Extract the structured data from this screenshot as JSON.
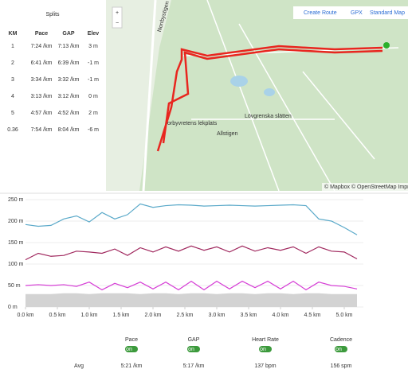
{
  "splits": {
    "title": "Splits",
    "columns": [
      "KM",
      "Pace",
      "GAP",
      "Elev"
    ],
    "rows": [
      [
        "1",
        "7:24 /km",
        "7:13 /km",
        "3 m"
      ],
      [
        "2",
        "6:41 /km",
        "6:39 /km",
        "-1 m"
      ],
      [
        "3",
        "3:34 /km",
        "3:32 /km",
        "-1 m"
      ],
      [
        "4",
        "3:13 /km",
        "3:12 /km",
        "0 m"
      ],
      [
        "5",
        "4:57 /km",
        "4:52 /km",
        "2 m"
      ],
      [
        "0.36",
        "7:54 /km",
        "8:04 /km",
        "-6 m"
      ]
    ]
  },
  "map": {
    "zoom_in": "+",
    "zoom_out": "−",
    "create_route": "Create Route",
    "gpx": "GPX",
    "map_style": "Standard Map",
    "labels": [
      "Lövgrenska slätten",
      "orbyvretens lekplats",
      "Allstigen",
      "Norrbystigen"
    ],
    "attribution": "© Mapbox © OpenStreetMap Improv"
  },
  "chart": {
    "xlim": [
      0,
      5.3
    ],
    "ylim": [
      0,
      250
    ],
    "xticks": [
      {
        "value": 0,
        "label": "0.0 km"
      },
      {
        "value": 0.5,
        "label": "0.5 km"
      },
      {
        "value": 1,
        "label": "1.0 km"
      },
      {
        "value": 1.5,
        "label": "1.5 km"
      },
      {
        "value": 2,
        "label": "2.0 km"
      },
      {
        "value": 2.5,
        "label": "2.5 km"
      },
      {
        "value": 3,
        "label": "3.0 km"
      },
      {
        "value": 3.5,
        "label": "3.5 km"
      },
      {
        "value": 4,
        "label": "4.0 km"
      },
      {
        "value": 4.5,
        "label": "4.5 km"
      },
      {
        "value": 5,
        "label": "5.0 km"
      }
    ],
    "yticks": [
      {
        "value": 0,
        "label": "0 m"
      },
      {
        "value": 50,
        "label": "50 m"
      },
      {
        "value": 100,
        "label": "100 m"
      },
      {
        "value": 150,
        "label": "150 m"
      },
      {
        "value": 200,
        "label": "200 m"
      },
      {
        "value": 250,
        "label": "250 m"
      }
    ],
    "x": [
      0,
      0.2,
      0.4,
      0.6,
      0.8,
      1,
      1.2,
      1.4,
      1.6,
      1.8,
      2,
      2.2,
      2.4,
      2.6,
      2.8,
      3,
      3.2,
      3.4,
      3.6,
      3.8,
      4,
      4.2,
      4.4,
      4.6,
      4.8,
      5,
      5.2
    ],
    "area": {
      "color": "#d3d3d3",
      "values": [
        30,
        30,
        30,
        32,
        32,
        30,
        32,
        32,
        32,
        30,
        32,
        32,
        30,
        32,
        32,
        30,
        32,
        32,
        30,
        32,
        32,
        30,
        32,
        32,
        30,
        30,
        30
      ]
    },
    "series": [
      {
        "color": "#5aa9c9",
        "values": [
          192,
          188,
          190,
          205,
          212,
          198,
          220,
          205,
          215,
          240,
          232,
          236,
          238,
          237,
          235,
          236,
          237,
          236,
          235,
          236,
          237,
          238,
          236,
          205,
          200,
          185,
          168
        ]
      },
      {
        "color": "#a0285e",
        "values": [
          110,
          125,
          118,
          120,
          130,
          128,
          125,
          135,
          120,
          138,
          128,
          140,
          130,
          142,
          132,
          140,
          128,
          142,
          130,
          138,
          132,
          140,
          125,
          140,
          130,
          128,
          112
        ]
      },
      {
        "color": "#d63fd6",
        "values": [
          50,
          52,
          50,
          52,
          48,
          58,
          40,
          55,
          45,
          58,
          42,
          58,
          40,
          60,
          40,
          60,
          42,
          60,
          45,
          60,
          42,
          60,
          40,
          58,
          50,
          48,
          42
        ]
      }
    ]
  },
  "stats": {
    "row_label": "Avg",
    "columns": [
      {
        "name": "Pace",
        "toggle": "on",
        "avg": "5:21 /km"
      },
      {
        "name": "GAP",
        "toggle": "on",
        "avg": "5:17 /km"
      },
      {
        "name": "Heart Rate",
        "toggle": "on",
        "avg": "137 bpm"
      },
      {
        "name": "Cadence",
        "toggle": "on",
        "avg": "156 spm"
      }
    ]
  }
}
